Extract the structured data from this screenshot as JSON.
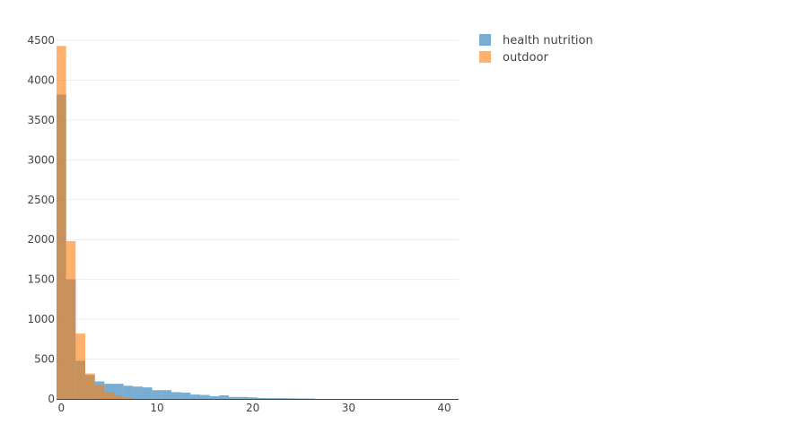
{
  "chart_data": {
    "type": "histogram",
    "title": "",
    "xlabel": "",
    "ylabel": "",
    "xlim": [
      -0.5,
      41.5
    ],
    "ylim": [
      0,
      4500
    ],
    "bin_width": 1,
    "x_ticks": [
      0,
      10,
      20,
      30,
      40
    ],
    "y_ticks": [
      0,
      500,
      1000,
      1500,
      2000,
      2500,
      3000,
      3500,
      4000,
      4500
    ],
    "grid": "horizontal",
    "legend_position": "top-right",
    "barmode": "overlay",
    "series": [
      {
        "name": "health nutrition",
        "color": "#1f77b4",
        "bin_starts": [
          -0.5,
          0.5,
          1.5,
          2.5,
          3.5,
          4.5,
          5.5,
          6.5,
          7.5,
          8.5,
          9.5,
          10.5,
          11.5,
          12.5,
          13.5,
          14.5,
          15.5,
          16.5,
          17.5,
          18.5,
          19.5,
          20.5,
          21.5,
          22.5,
          23.5,
          24.5,
          25.5
        ],
        "values": [
          3820,
          1500,
          480,
          300,
          220,
          190,
          190,
          165,
          155,
          145,
          110,
          110,
          85,
          80,
          55,
          50,
          35,
          45,
          25,
          25,
          20,
          12,
          10,
          10,
          8,
          6,
          5
        ]
      },
      {
        "name": "outdoor",
        "color": "#ff7f0e",
        "bin_starts": [
          -0.5,
          0.5,
          1.5,
          2.5,
          3.5,
          4.5,
          5.5,
          6.5
        ],
        "values": [
          4430,
          1980,
          820,
          320,
          170,
          90,
          45,
          15
        ]
      }
    ]
  }
}
